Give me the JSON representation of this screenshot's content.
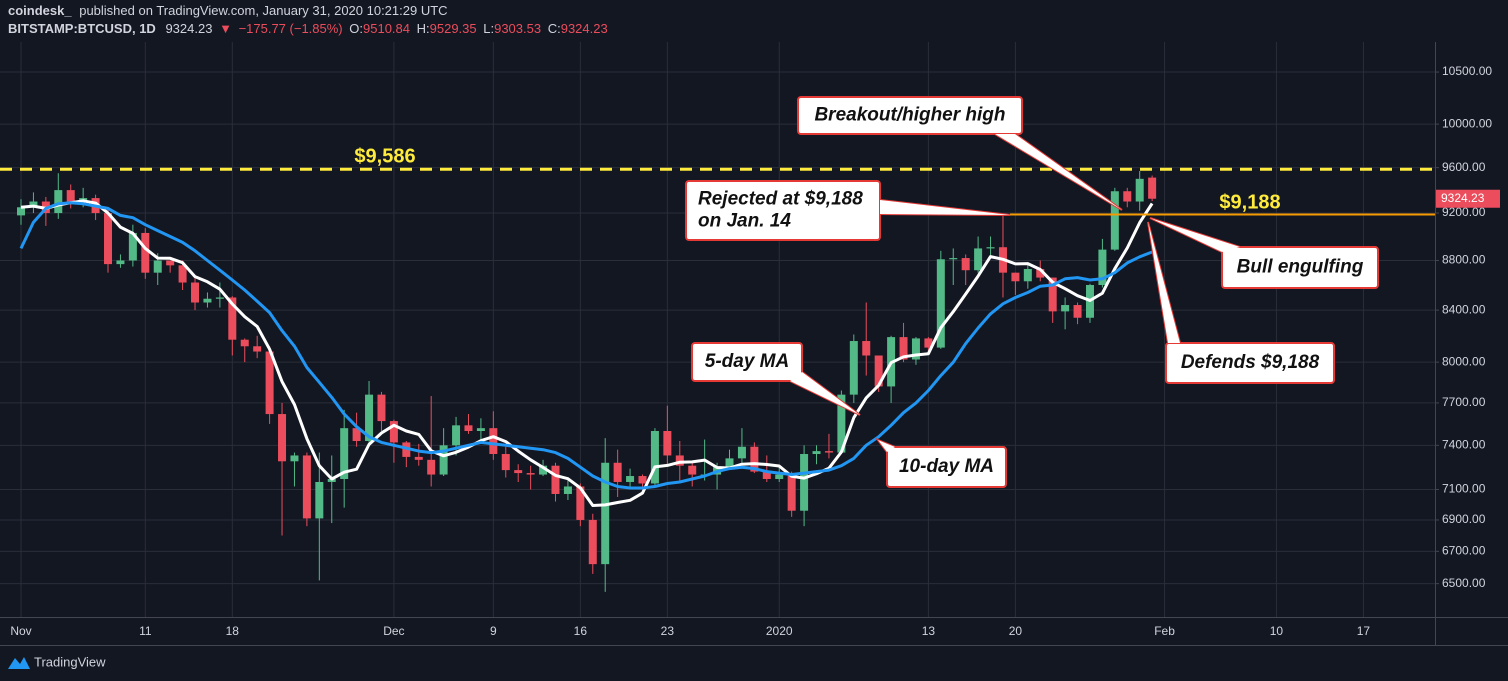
{
  "header": {
    "publisher": "coindesk_",
    "published": "published on TradingView.com, January 31, 2020 10:21:29 UTC",
    "symbol": "BITSTAMP:BTCUSD, 1D",
    "change": "−175.77 (−1.85%)",
    "o_label": "O:",
    "h_label": "H:",
    "l_label": "L:",
    "c_label": "C:"
  },
  "footer": {
    "brand": "TradingView"
  },
  "chart_data": {
    "type": "candlestick",
    "log_scale": true,
    "grid": true,
    "up_color": "#53b987",
    "down_color": "#eb4d5c",
    "categories": [
      "Nov",
      null,
      null,
      null,
      null,
      null,
      null,
      null,
      null,
      null,
      "11",
      null,
      null,
      null,
      null,
      null,
      null,
      "18",
      null,
      null,
      null,
      null,
      null,
      null,
      null,
      null,
      null,
      null,
      null,
      null,
      "Dec",
      null,
      null,
      null,
      null,
      null,
      null,
      null,
      "9",
      null,
      null,
      null,
      null,
      null,
      null,
      "16",
      null,
      null,
      null,
      null,
      null,
      null,
      "23",
      null,
      null,
      null,
      null,
      null,
      null,
      null,
      null,
      "2020",
      null,
      null,
      null,
      null,
      null,
      null,
      null,
      null,
      null,
      null,
      null,
      "13",
      null,
      null,
      null,
      null,
      null,
      null,
      "20",
      null,
      null,
      null,
      null,
      null,
      null,
      null,
      null,
      null,
      null,
      null,
      "Feb",
      null,
      null,
      null,
      null,
      null,
      null,
      null,
      null,
      "10",
      null,
      null,
      null,
      null,
      null,
      null,
      "17",
      null,
      null,
      null
    ],
    "open": [
      9180,
      9250,
      9300,
      9200,
      9400,
      9300,
      9330,
      9200,
      8770,
      8800,
      9030,
      8700,
      8800,
      8760,
      8620,
      8460,
      8490,
      8500,
      8170,
      8120,
      8080,
      7620,
      7290,
      7330,
      6910,
      7150,
      7170,
      7520,
      7430,
      7760,
      7570,
      7420,
      7320,
      7300,
      7200,
      7400,
      7540,
      7500,
      7520,
      7340,
      7230,
      7210,
      7200,
      7260,
      7070,
      7120,
      6900,
      6620,
      7280,
      7150,
      7190,
      7140,
      7500,
      7330,
      7260,
      7200,
      7200,
      7250,
      7310,
      7390,
      7220,
      7170,
      7200,
      6960,
      7340,
      7360,
      7350,
      7760,
      8160,
      8050,
      7820,
      8190,
      8020,
      8180,
      8110,
      8810,
      8820,
      8720,
      8900,
      8910,
      8700,
      8630,
      8730,
      8660,
      8390,
      8440,
      8340,
      8600,
      8890,
      9390,
      9300,
      9510.84,
      null,
      null,
      null,
      null,
      null,
      null,
      null,
      null,
      null,
      null,
      null,
      null,
      null,
      null,
      null,
      null,
      null,
      null,
      null,
      null
    ],
    "high": [
      9320,
      9380,
      9340,
      9550,
      9450,
      9420,
      9360,
      9230,
      8850,
      9100,
      9070,
      8860,
      8800,
      8800,
      8660,
      8540,
      8620,
      8510,
      8180,
      8200,
      8120,
      7700,
      7350,
      7350,
      7350,
      7330,
      7650,
      7630,
      7860,
      7780,
      7580,
      7430,
      7410,
      7750,
      7520,
      7600,
      7620,
      7590,
      7640,
      7390,
      7270,
      7260,
      7300,
      7280,
      7180,
      7140,
      6940,
      7450,
      7370,
      7240,
      7200,
      7520,
      7680,
      7430,
      7280,
      7440,
      7280,
      7370,
      7520,
      7420,
      7330,
      7250,
      7220,
      7400,
      7400,
      7480,
      7790,
      8210,
      8460,
      8050,
      8200,
      8300,
      8190,
      8190,
      8880,
      8900,
      8850,
      9000,
      9000,
      9190,
      8700,
      8770,
      8800,
      8660,
      8500,
      8460,
      8610,
      8980,
      9420,
      9420,
      9570,
      9529.35,
      null,
      null,
      null,
      null,
      null,
      null,
      null,
      null,
      null,
      null,
      null,
      null,
      null,
      null,
      null,
      null,
      null,
      null,
      null,
      null
    ],
    "low": [
      9100,
      9200,
      9090,
      9150,
      9240,
      9250,
      9140,
      8700,
      8740,
      8750,
      8650,
      8600,
      8700,
      8560,
      8400,
      8420,
      8420,
      8050,
      8000,
      8030,
      7550,
      6800,
      7120,
      6860,
      6520,
      6880,
      6980,
      7390,
      7400,
      7500,
      7280,
      7250,
      7260,
      7120,
      7190,
      7330,
      7480,
      7430,
      7300,
      7180,
      7150,
      7100,
      7190,
      7020,
      7030,
      6860,
      6560,
      6450,
      7050,
      7120,
      7120,
      7130,
      7270,
      7160,
      7120,
      7160,
      7100,
      7240,
      7280,
      7210,
      7150,
      7150,
      6920,
      6860,
      7270,
      7310,
      7340,
      7700,
      7900,
      7780,
      7700,
      8000,
      7980,
      8060,
      8100,
      8600,
      8600,
      8700,
      8830,
      8500,
      8520,
      8570,
      8630,
      8300,
      8250,
      8290,
      8300,
      8580,
      8880,
      9250,
      9220,
      9303.53,
      null,
      null,
      null,
      null,
      null,
      null,
      null,
      null,
      null,
      null,
      null,
      null,
      null,
      null,
      null,
      null,
      null,
      null,
      null,
      null
    ],
    "close": [
      9250,
      9300,
      9200,
      9400,
      9300,
      9330,
      9200,
      8770,
      8800,
      9030,
      8700,
      8800,
      8760,
      8620,
      8460,
      8490,
      8500,
      8170,
      8120,
      8080,
      7620,
      7290,
      7330,
      6910,
      7150,
      7170,
      7520,
      7430,
      7760,
      7570,
      7420,
      7320,
      7300,
      7200,
      7400,
      7540,
      7500,
      7520,
      7340,
      7230,
      7210,
      7200,
      7260,
      7070,
      7120,
      6900,
      6620,
      7280,
      7150,
      7190,
      7140,
      7500,
      7330,
      7260,
      7200,
      7200,
      7250,
      7310,
      7390,
      7220,
      7170,
      7200,
      6960,
      7340,
      7360,
      7350,
      7760,
      8160,
      8050,
      7820,
      8190,
      8020,
      8180,
      8110,
      8810,
      8820,
      8720,
      8900,
      8910,
      8700,
      8630,
      8730,
      8660,
      8390,
      8440,
      8340,
      8600,
      8890,
      9390,
      9300,
      9500,
      9324.23,
      null,
      null,
      null,
      null,
      null,
      null,
      null,
      null,
      null,
      null,
      null,
      null,
      null,
      null,
      null,
      null,
      null,
      null,
      null,
      null
    ],
    "overlays": [
      {
        "color": "#ffffff",
        "values": [
          9250,
          9260,
          9240,
          9270,
          9290,
          9306,
          9286,
          9200,
          9080,
          9026,
          8900,
          8820,
          8818,
          8782,
          8668,
          8626,
          8566,
          8448,
          8348,
          8272,
          8098,
          7856,
          7688,
          7446,
          7260,
          7170,
          7216,
          7236,
          7406,
          7486,
          7540,
          7500,
          7476,
          7362,
          7328,
          7352,
          7388,
          7432,
          7460,
          7426,
          7360,
          7300,
          7248,
          7194,
          7172,
          7110,
          6994,
          6998,
          7014,
          7028,
          7076,
          7252,
          7262,
          7284,
          7286,
          7298,
          7248,
          7244,
          7270,
          7274,
          7268,
          7258,
          7188,
          7176,
          7206,
          7242,
          7354,
          7594,
          7736,
          7828,
          7996,
          8040,
          8054,
          8064,
          8262,
          8388,
          8528,
          8672,
          8832,
          8810,
          8772,
          8774,
          8726,
          8622,
          8570,
          8514,
          8476,
          8534,
          8732,
          8904,
          9118,
          9283,
          null,
          null,
          null,
          null,
          null,
          null,
          null,
          null,
          null,
          null,
          null,
          null,
          null,
          null,
          null,
          null,
          null,
          null,
          null,
          null
        ]
      },
      {
        "color": "#2196f3",
        "values": [
          8900,
          9120,
          9240,
          9280,
          9290,
          9280,
          9260,
          9240,
          9180,
          9160,
          9100,
          9050,
          9000,
          8950,
          8880,
          8800,
          8720,
          8640,
          8560,
          8470,
          8380,
          8240,
          8120,
          7960,
          7850,
          7740,
          7620,
          7530,
          7460,
          7420,
          7400,
          7380,
          7360,
          7350,
          7360,
          7380,
          7400,
          7420,
          7410,
          7400,
          7390,
          7380,
          7370,
          7350,
          7310,
          7250,
          7190,
          7150,
          7120,
          7110,
          7110,
          7120,
          7140,
          7150,
          7170,
          7190,
          7220,
          7240,
          7250,
          7240,
          7220,
          7210,
          7200,
          7210,
          7220,
          7230,
          7260,
          7310,
          7400,
          7460,
          7540,
          7630,
          7700,
          7790,
          7900,
          8000,
          8140,
          8260,
          8370,
          8450,
          8500,
          8540,
          8590,
          8600,
          8650,
          8660,
          8640,
          8650,
          8700,
          8780,
          8830,
          8870,
          null,
          null,
          null,
          null,
          null,
          null,
          null,
          null,
          null,
          null,
          null,
          null,
          null,
          null,
          null,
          null,
          null,
          null,
          null,
          null
        ]
      }
    ],
    "ylim": [
      6300,
      10800
    ],
    "yticks": [
      {
        "value": 6500,
        "label": "6500.00"
      },
      {
        "value": 6700,
        "label": "6700.00"
      },
      {
        "value": 6900,
        "label": "6900.00"
      },
      {
        "value": 7100,
        "label": "7100.00"
      },
      {
        "value": 7400,
        "label": "7400.00"
      },
      {
        "value": 7700,
        "label": "7700.00"
      },
      {
        "value": 8000,
        "label": "8000.00"
      },
      {
        "value": 8400,
        "label": "8400.00"
      },
      {
        "value": 8800,
        "label": "8800.00"
      },
      {
        "value": 9200,
        "label": "9200.00"
      },
      {
        "value": 9600,
        "label": "9600.00"
      },
      {
        "value": 10000,
        "label": "10000.00"
      },
      {
        "value": 10500,
        "label": "10500.00"
      }
    ],
    "hlines": [
      {
        "value": 9586,
        "label": "$9,586",
        "color": "#ffeb3b",
        "dashed": true
      },
      {
        "value": 9188,
        "label": "$9,188",
        "color": "#f59b00",
        "dashed": false
      }
    ],
    "annotations": [
      {
        "lines": [
          "Breakout/higher high"
        ]
      },
      {
        "lines": [
          "Rejected at $9,188",
          "on Jan. 14"
        ]
      },
      {
        "lines": [
          "Bull engulfing"
        ]
      },
      {
        "lines": [
          "Defends $9,188"
        ]
      },
      {
        "lines": [
          "5-day MA"
        ]
      },
      {
        "lines": [
          "10-day MA"
        ]
      }
    ]
  }
}
